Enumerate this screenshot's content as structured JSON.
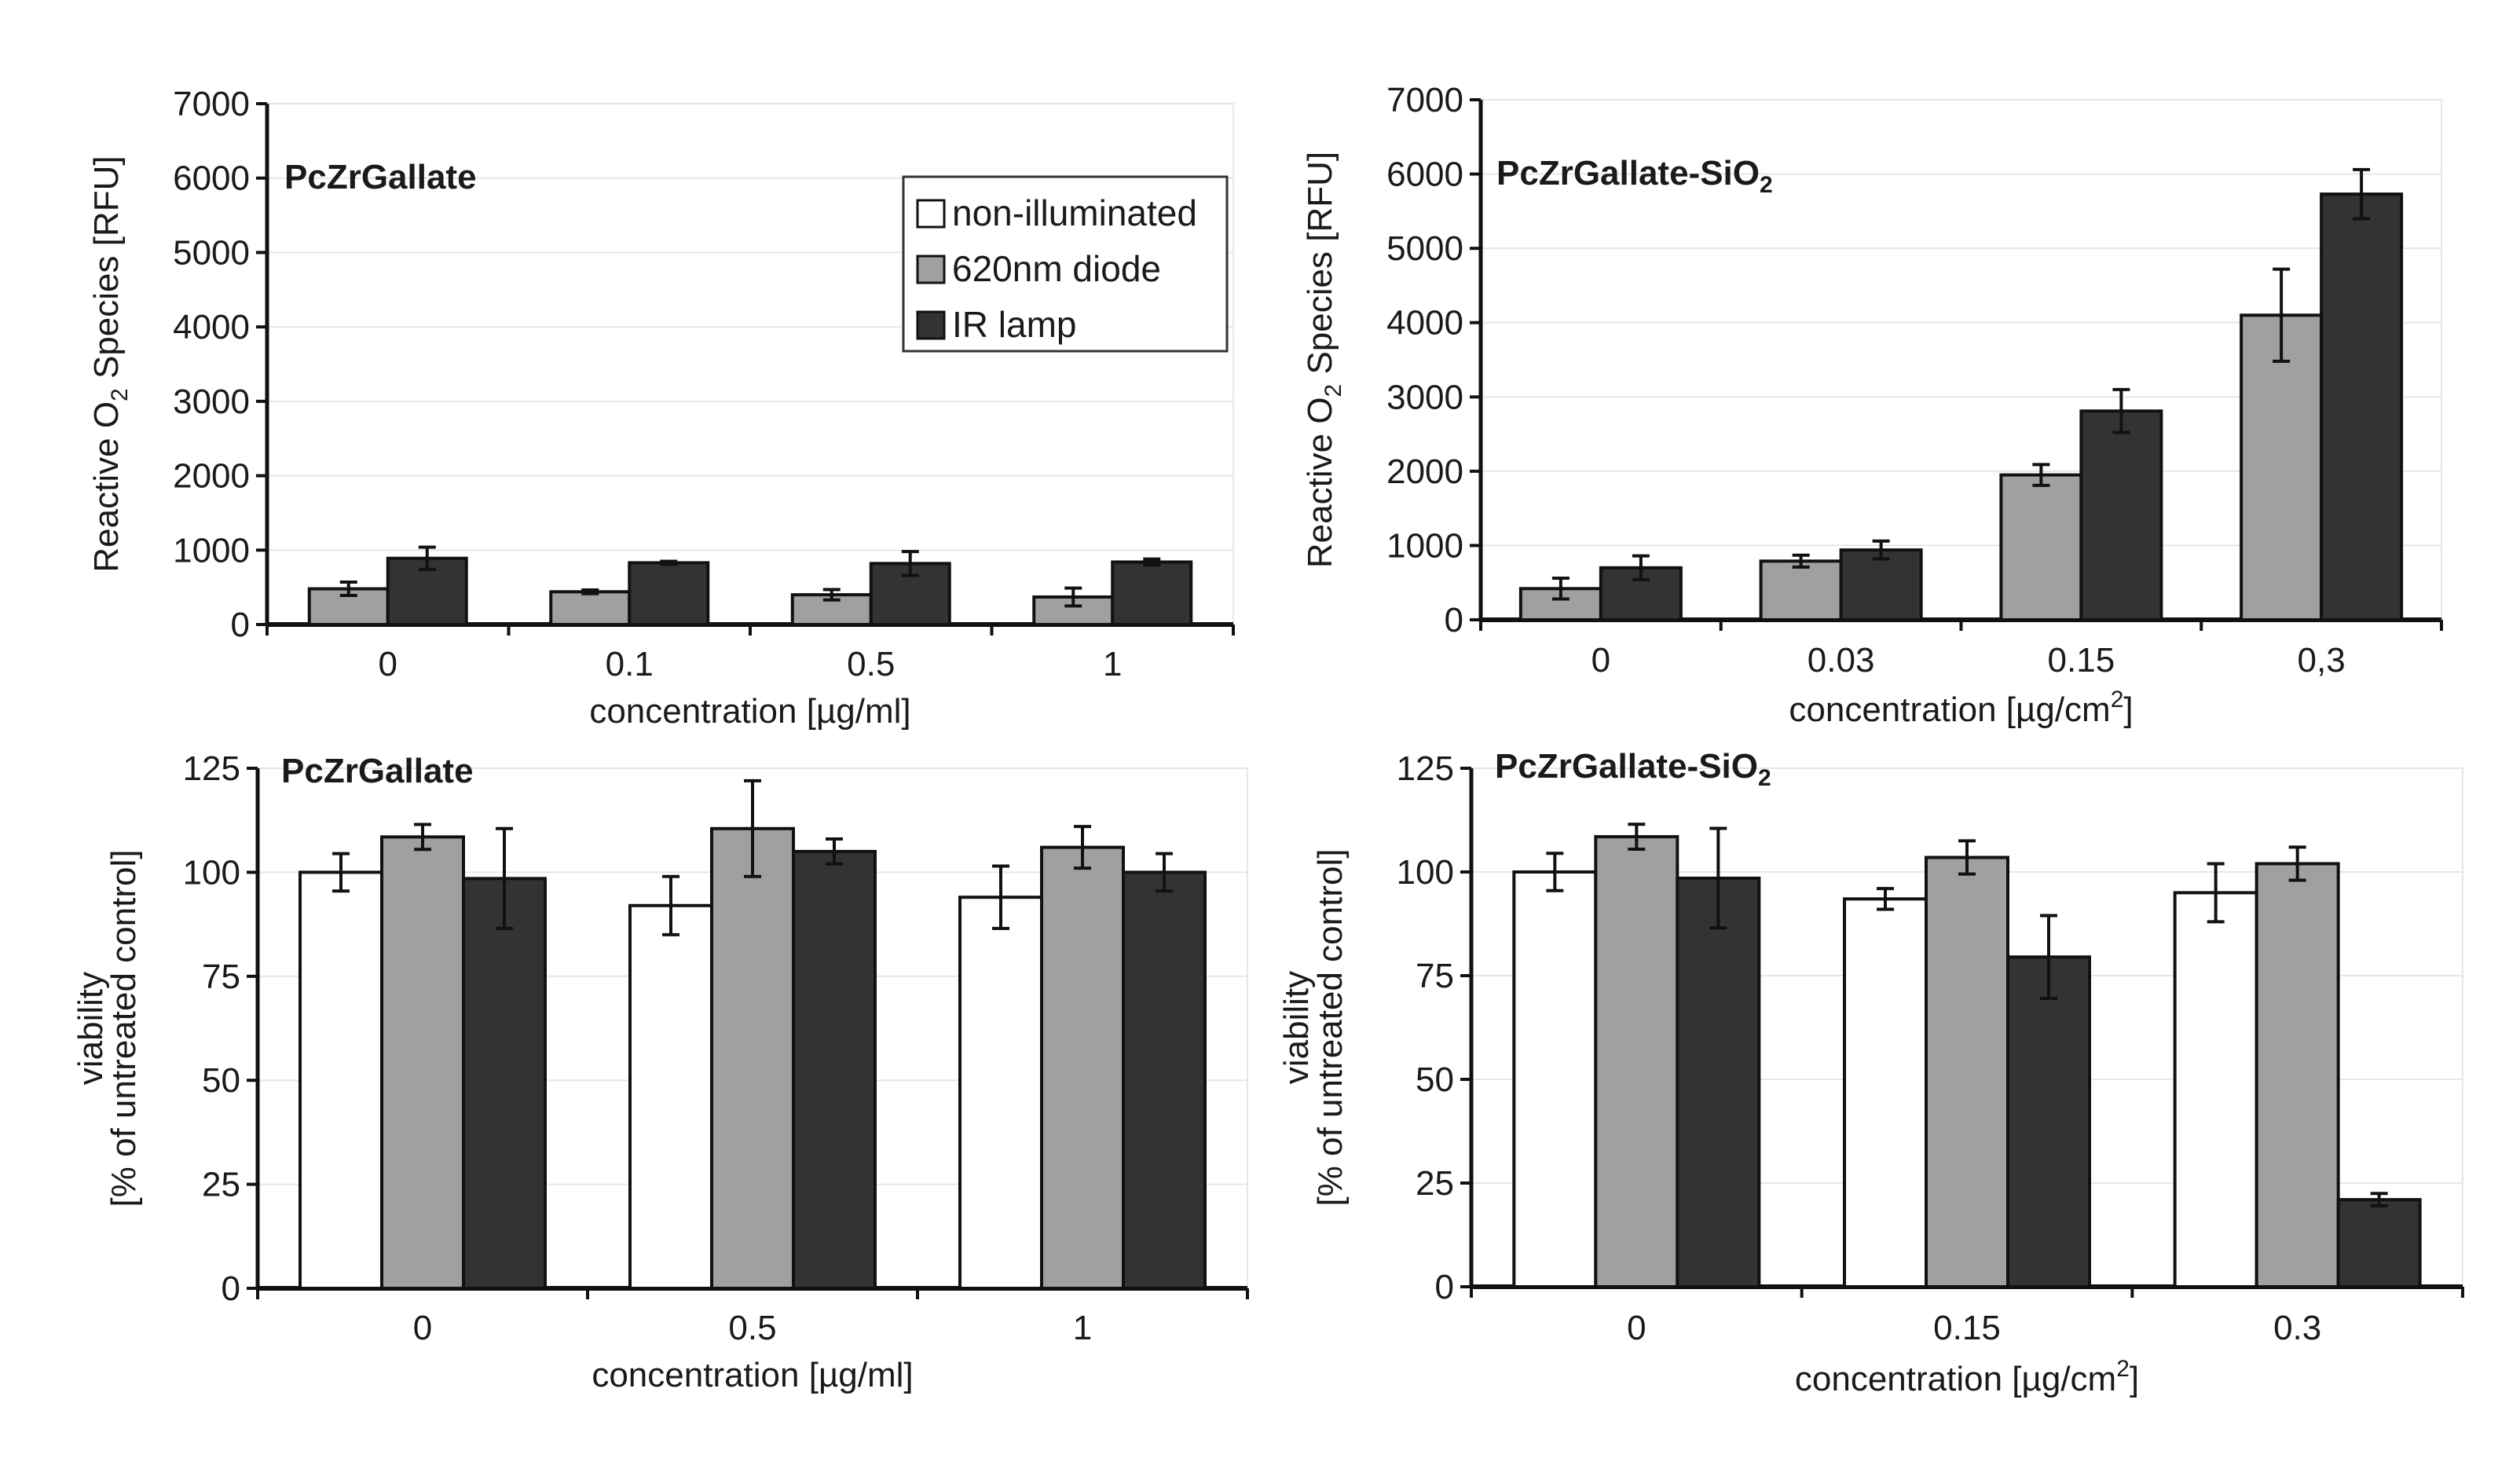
{
  "colors": {
    "non_illuminated": "#ffffff",
    "diode": "#a0a0a0",
    "ir": "#333333",
    "axis": "#111111",
    "grid": "#e6e6e6"
  },
  "legend": {
    "items": [
      {
        "name": "non-illuminated",
        "color": "#ffffff"
      },
      {
        "name": "620nm diode",
        "color": "#a0a0a0"
      },
      {
        "name": "IR lamp",
        "color": "#333333"
      }
    ]
  },
  "chart_data": [
    {
      "type": "bar",
      "title": "PcZrGallate",
      "title_sub": "",
      "xlabel": "concentration [µg/ml]",
      "xlabel_sup": "",
      "xlabel_after": "",
      "ylabel": "Reactive O",
      "ylabel_sub": "2",
      "ylabel_after": " Species [RFU]",
      "ylabel2": "",
      "ylim": [
        0,
        7000
      ],
      "yticks": [
        "0",
        "1000",
        "2000",
        "3000",
        "4000",
        "5000",
        "6000",
        "7000"
      ],
      "categories": [
        "0",
        "0.1",
        "0.5",
        "1"
      ],
      "series": [
        {
          "name": "620nm diode",
          "values": [
            480,
            440,
            400,
            370
          ],
          "errors": [
            90,
            25,
            70,
            120
          ]
        },
        {
          "name": "IR lamp",
          "values": [
            890,
            830,
            820,
            840
          ],
          "errors": [
            150,
            20,
            160,
            40
          ]
        }
      ]
    },
    {
      "type": "bar",
      "title": "PcZrGallate-SiO",
      "title_sub": "2",
      "xlabel": "concentration [µg/cm",
      "xlabel_sup": "2",
      "xlabel_after": "]",
      "ylabel": "Reactive O",
      "ylabel_sub": "2",
      "ylabel_after": " Species [RFU]",
      "ylabel2": "",
      "ylim": [
        0,
        7000
      ],
      "yticks": [
        "0",
        "1000",
        "2000",
        "3000",
        "4000",
        "5000",
        "6000",
        "7000"
      ],
      "categories": [
        "0",
        "0.03",
        "0.15",
        "0,3"
      ],
      "series": [
        {
          "name": "620nm diode",
          "values": [
            420,
            790,
            1950,
            4100
          ],
          "errors": [
            140,
            80,
            140,
            620
          ]
        },
        {
          "name": "IR lamp",
          "values": [
            700,
            940,
            2810,
            5730
          ],
          "errors": [
            160,
            120,
            290,
            330
          ]
        }
      ]
    },
    {
      "type": "bar",
      "title": "PcZrGallate",
      "title_sub": "",
      "xlabel": "concentration [µg/ml]",
      "xlabel_sup": "",
      "xlabel_after": "",
      "ylabel": "viability",
      "ylabel_sub": "",
      "ylabel_after": "",
      "ylabel2": "[% of untreated control]",
      "ylim": [
        0,
        125
      ],
      "yticks": [
        "0",
        "25",
        "50",
        "75",
        "100",
        "125"
      ],
      "categories": [
        "0",
        "0.5",
        "1"
      ],
      "series": [
        {
          "name": "non-illuminated",
          "values": [
            100,
            92,
            94
          ],
          "errors": [
            4.5,
            7,
            7.5
          ]
        },
        {
          "name": "620nm diode",
          "values": [
            108.5,
            110.5,
            106
          ],
          "errors": [
            3,
            11.5,
            5
          ]
        },
        {
          "name": "IR lamp",
          "values": [
            98.5,
            105,
            100
          ],
          "errors": [
            12,
            3,
            4.5
          ]
        }
      ]
    },
    {
      "type": "bar",
      "title": "PcZrGallate-SiO",
      "title_sub": "2",
      "xlabel": "concentration [µg/cm",
      "xlabel_sup": "2",
      "xlabel_after": "]",
      "ylabel": "viability",
      "ylabel_sub": "",
      "ylabel_after": "",
      "ylabel2": "[% of untreated control]",
      "ylim": [
        0,
        125
      ],
      "yticks": [
        "0",
        "25",
        "50",
        "75",
        "100",
        "125"
      ],
      "categories": [
        "0",
        "0.15",
        "0.3"
      ],
      "series": [
        {
          "name": "non-illuminated",
          "values": [
            100,
            93.5,
            95
          ],
          "errors": [
            4.5,
            2.5,
            7
          ]
        },
        {
          "name": "620nm diode",
          "values": [
            108.5,
            103.5,
            102
          ],
          "errors": [
            3,
            4,
            4
          ]
        },
        {
          "name": "IR lamp",
          "values": [
            98.5,
            79.5,
            21
          ],
          "errors": [
            12,
            10,
            1.5
          ]
        }
      ]
    }
  ]
}
